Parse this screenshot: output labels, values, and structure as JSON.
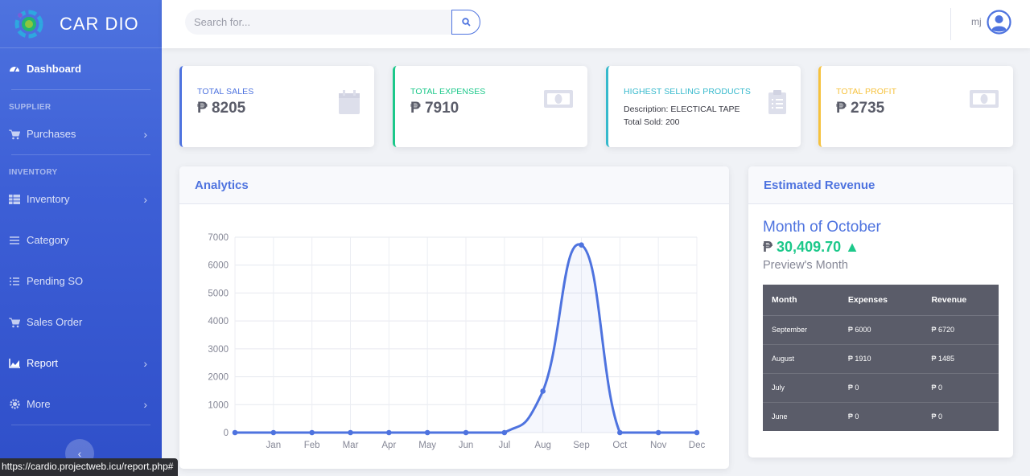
{
  "brand": {
    "name": "CAR DIO"
  },
  "sidebar": {
    "dashboard": "Dashboard",
    "heading_supplier": "SUPPLIER",
    "purchases": "Purchases",
    "heading_inventory": "INVENTORY",
    "inventory": "Inventory",
    "category": "Category",
    "pending_so": "Pending SO",
    "sales_order": "Sales Order",
    "report": "Report",
    "more": "More"
  },
  "topbar": {
    "search_placeholder": "Search for...",
    "user": "mj"
  },
  "stats": {
    "sales": {
      "label": "TOTAL SALES",
      "value": "₱ 8205"
    },
    "expenses": {
      "label": "TOTAL EXPENSES",
      "value": "₱ 7910"
    },
    "products": {
      "label": "HIGHEST SELLING PRODUCTS",
      "desc1": "Description: ELECTICAL TAPE",
      "desc2": "Total Sold: 200"
    },
    "profit": {
      "label": "TOTAL PROFIT",
      "value": "₱ 2735"
    }
  },
  "analytics": {
    "title": "Analytics"
  },
  "revenue": {
    "title": "Estimated Revenue",
    "month": "Month of October",
    "currency": "₱",
    "amount": "30,409.70",
    "trend": "▲",
    "prev": "Preview's Month",
    "headers": [
      "Month",
      "Expenses",
      "Revenue"
    ],
    "rows": [
      [
        "September",
        "₱ 6000",
        "₱ 6720"
      ],
      [
        "August",
        "₱ 1910",
        "₱ 1485"
      ],
      [
        "July",
        "₱ 0",
        "₱ 0"
      ],
      [
        "June",
        "₱ 0",
        "₱ 0"
      ]
    ]
  },
  "status_url": "https://cardio.projectweb.icu/report.php#",
  "colors": {
    "primary": "#4e73df",
    "success": "#1cc88a",
    "info": "#36b9cc",
    "warning": "#f6c23e"
  },
  "chart_data": {
    "type": "line",
    "x": [
      "",
      "Jan",
      "Feb",
      "Mar",
      "Apr",
      "May",
      "Jun",
      "Jul",
      "Aug",
      "Sep",
      "Oct",
      "Nov",
      "Dec"
    ],
    "series": [
      {
        "values": [
          0,
          0,
          0,
          0,
          0,
          0,
          0,
          0,
          1485,
          6720,
          0,
          0,
          0
        ]
      }
    ],
    "ylim": [
      0,
      7000
    ],
    "yticks": [
      0,
      1000,
      2000,
      3000,
      4000,
      5000,
      6000,
      7000
    ],
    "grid": true,
    "fill": true
  }
}
